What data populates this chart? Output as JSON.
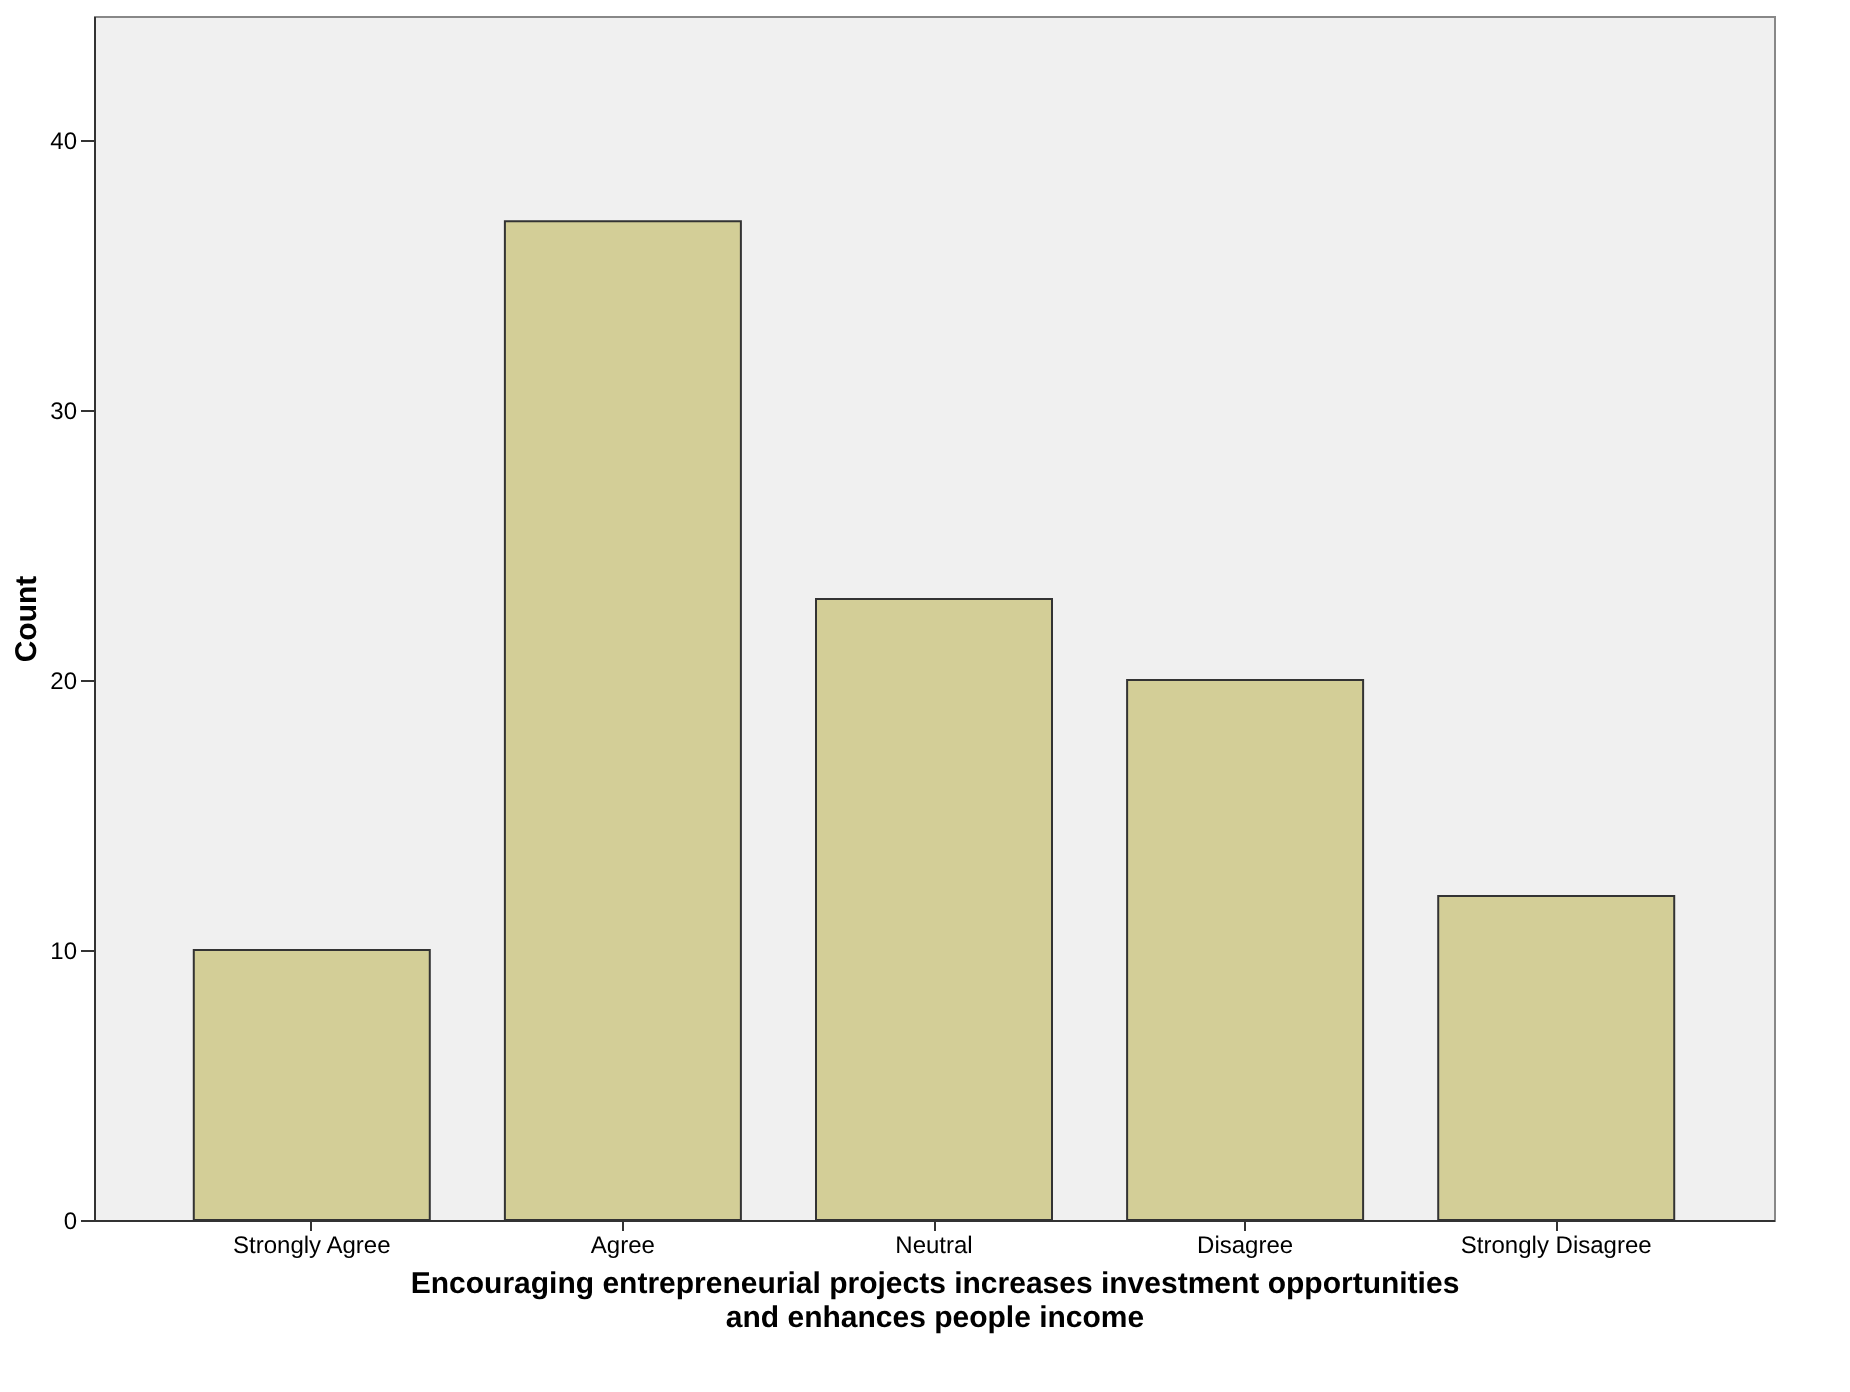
{
  "chart_data": {
    "type": "bar",
    "categories": [
      "Strongly Agree",
      "Agree",
      "Neutral",
      "Disagree",
      "Strongly Disagree"
    ],
    "values": [
      10,
      37,
      23,
      20,
      12
    ],
    "color": "#d3ce97",
    "xlabel": "Encouraging entrepreneurial projects increases investment opportunities and enhances people income",
    "ylabel": "Count",
    "ylim": [
      0,
      44.6
    ],
    "yticks": [
      0,
      10,
      20,
      30,
      40
    ],
    "grid": false
  }
}
